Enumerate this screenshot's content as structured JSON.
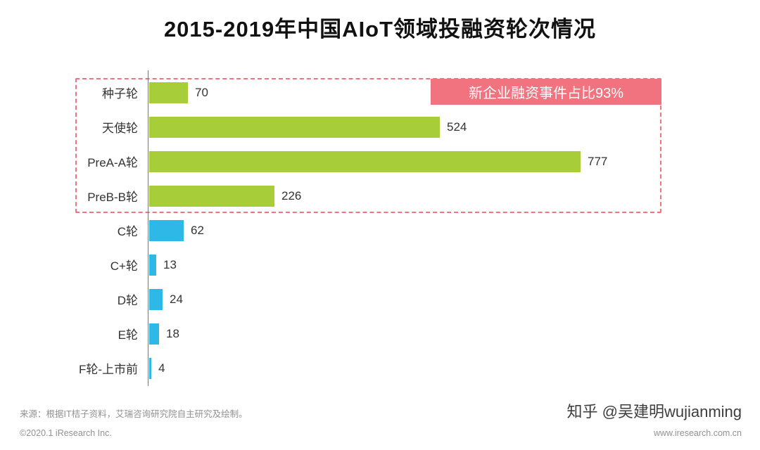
{
  "title": "2015-2019年中国AIoT领域投融资轮次情况",
  "chart_data": {
    "type": "bar",
    "orientation": "horizontal",
    "title": "2015-2019年中国AIoT领域投融资轮次情况",
    "categories": [
      "种子轮",
      "天使轮",
      "PreA-A轮",
      "PreB-B轮",
      "C轮",
      "C+轮",
      "D轮",
      "E轮",
      "F轮-上市前"
    ],
    "values": [
      70,
      524,
      777,
      226,
      62,
      13,
      24,
      18,
      4
    ],
    "groups": [
      "new",
      "new",
      "new",
      "new",
      "late",
      "late",
      "late",
      "late",
      "late"
    ],
    "colors": {
      "new": "#a7ce38",
      "late": "#2db8e8"
    },
    "xlim": [
      0,
      800
    ],
    "value_labels_shown": true,
    "grid": false,
    "legend": "none",
    "annotation": {
      "label": "新企业融资事件占比93%",
      "applies_to_rows": [
        "种子轮",
        "天使轮",
        "PreA-A轮",
        "PreB-B轮"
      ],
      "bg_color": "#f0737f",
      "text_color": "#ffffff",
      "border_style": "dashed"
    }
  },
  "footer": {
    "source": "来源：根据IT桔子资料，艾瑞咨询研究院自主研究及绘制。",
    "copyright": "©2020.1 iResearch Inc.",
    "watermark": "知乎 @吴建明wujianming",
    "url": "www.iresearch.com.cn"
  }
}
